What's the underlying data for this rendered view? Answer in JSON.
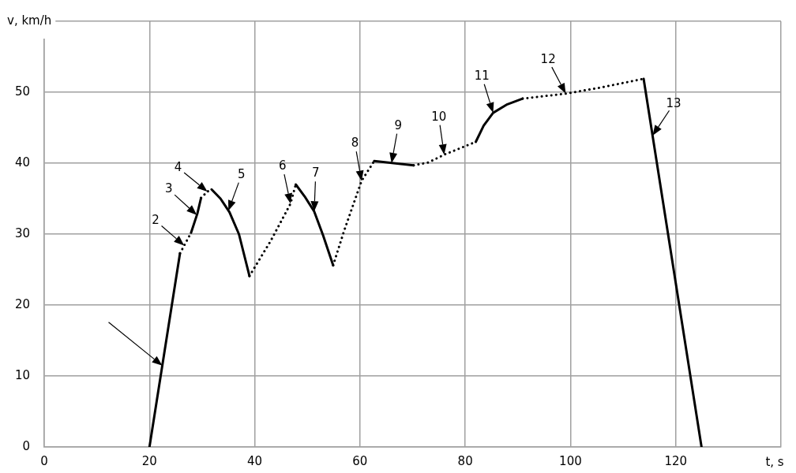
{
  "chart_data": {
    "type": "line",
    "xlabel": "t, s",
    "ylabel": "v, km/h",
    "xlim": [
      0,
      140
    ],
    "xticks": [
      0,
      20,
      40,
      60,
      80,
      100,
      120,
      {
        "value": 140,
        "label": null
      }
    ],
    "ylim": [
      0,
      60
    ],
    "yticks": [
      0,
      10,
      20,
      30,
      40,
      50,
      {
        "value": 60,
        "label": null
      }
    ],
    "grid": true,
    "legend": false,
    "marker": "none",
    "series": [
      {
        "color": "#000000",
        "line_style": "solid",
        "x": [
          20,
          25.8
        ],
        "values": [
          0,
          27.3
        ]
      },
      {
        "color": "#000000",
        "line_style": "dotted",
        "x": [
          25.8,
          27.9
        ],
        "values": [
          27.3,
          30.2
        ]
      },
      {
        "color": "#000000",
        "line_style": "solid",
        "x": [
          27.9,
          29.1,
          29.8
        ],
        "values": [
          30.2,
          32.9,
          35.1
        ]
      },
      {
        "color": "#000000",
        "line_style": "dotted",
        "x": [
          29.8,
          31,
          31.8
        ],
        "values": [
          35.1,
          36,
          36.3
        ]
      },
      {
        "color": "#000000",
        "line_style": "solid",
        "x": [
          31.8,
          33.5,
          35.2,
          37,
          39
        ],
        "values": [
          36.3,
          35,
          33.1,
          30,
          24.1
        ]
      },
      {
        "color": "#000000",
        "line_style": "dotted",
        "x": [
          39,
          43,
          46.8,
          47.8
        ],
        "values": [
          24.1,
          29,
          34.3,
          37
        ]
      },
      {
        "color": "#000000",
        "line_style": "solid",
        "x": [
          47.8,
          49.5,
          51.3,
          53,
          54.9
        ],
        "values": [
          37,
          35.3,
          33.2,
          29.8,
          25.6
        ]
      },
      {
        "color": "#000000",
        "line_style": "dotted",
        "x": [
          54.9,
          57,
          60.3,
          62.7
        ],
        "values": [
          25.6,
          30.5,
          37.5,
          40.3
        ]
      },
      {
        "color": "#000000",
        "line_style": "solid",
        "x": [
          62.7,
          70.2
        ],
        "values": [
          40.3,
          39.7
        ]
      },
      {
        "color": "#000000",
        "line_style": "dotted",
        "x": [
          70.2,
          73,
          76,
          82
        ],
        "values": [
          39.7,
          40.1,
          41.2,
          43
        ]
      },
      {
        "color": "#000000",
        "line_style": "solid",
        "x": [
          82,
          83.5,
          85.3,
          88,
          90.9
        ],
        "values": [
          43,
          45.3,
          47.1,
          48.3,
          49.1
        ]
      },
      {
        "color": "#000000",
        "line_style": "dotted",
        "x": [
          90.9,
          99.1,
          106,
          113.9
        ],
        "values": [
          49.1,
          49.8,
          50.7,
          51.9
        ]
      },
      {
        "color": "#000000",
        "line_style": "solid",
        "x": [
          113.9,
          124.9
        ],
        "values": [
          51.9,
          0
        ]
      }
    ],
    "annotations": [
      {
        "text": "2",
        "x": 26.6,
        "y": 28.4
      },
      {
        "text": "3",
        "x": 29,
        "y": 32.7
      },
      {
        "text": "4",
        "x": 31,
        "y": 36
      },
      {
        "text": "5",
        "x": 35,
        "y": 33.3
      },
      {
        "text": "6",
        "x": 46.8,
        "y": 34.3
      },
      {
        "text": "7",
        "x": 51.3,
        "y": 33.2
      },
      {
        "text": "8",
        "x": 60.3,
        "y": 37.5
      },
      {
        "text": "9",
        "x": 66,
        "y": 40
      },
      {
        "text": "10",
        "x": 76,
        "y": 41.2
      },
      {
        "text": "11",
        "x": 85.3,
        "y": 47.1
      },
      {
        "text": "12",
        "x": 99.1,
        "y": 49.8
      },
      {
        "text": "13",
        "x": 115.6,
        "y": 43.9
      }
    ]
  }
}
